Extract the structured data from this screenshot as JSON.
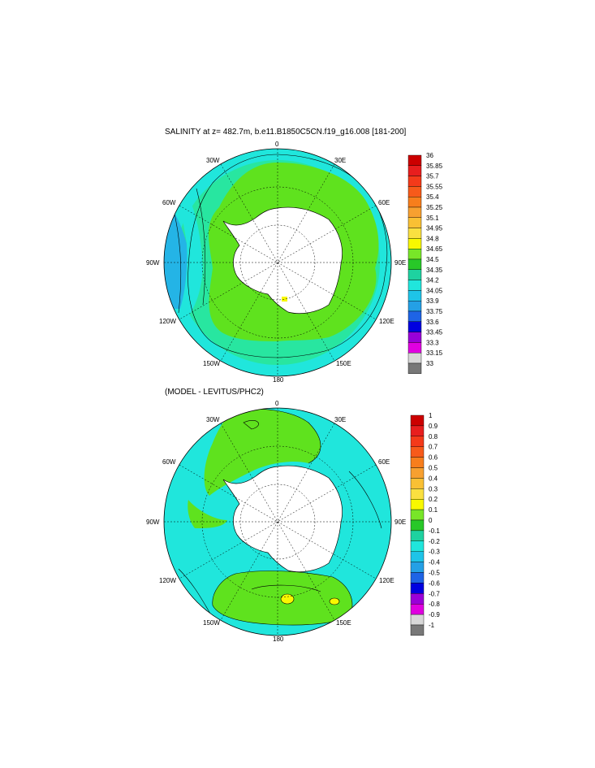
{
  "panels": [
    {
      "title": "SALINITY at z= 482.7m, b.e11.B1850C5CN.f19_g16.008 [181-200]",
      "lon_labels": [
        "0",
        "30E",
        "60E",
        "90E",
        "120E",
        "150E",
        "180",
        "150W",
        "120W",
        "90W",
        "60W",
        "30W"
      ],
      "colorbar": {
        "labels": [
          "36",
          "35.85",
          "35.7",
          "35.55",
          "35.4",
          "35.25",
          "35.1",
          "34.95",
          "34.8",
          "34.65",
          "34.5",
          "34.35",
          "34.2",
          "34.05",
          "33.9",
          "33.75",
          "33.6",
          "33.45",
          "33.3",
          "33.15",
          "33"
        ],
        "colors": [
          "#cc0000",
          "#e81e1e",
          "#f43a1a",
          "#f75a1a",
          "#f77e1c",
          "#f7a030",
          "#f9c034",
          "#fae040",
          "#f8f800",
          "#78e628",
          "#28c828",
          "#1ed2a0",
          "#20e6dc",
          "#1ec4e8",
          "#24a0e6",
          "#1e64e6",
          "#0000e0",
          "#9a00d8",
          "#e000e0",
          "#d8d8d8",
          "#787878"
        ]
      }
    },
    {
      "title": "(MODEL - LEVITUS/PHC2)",
      "lon_labels": [
        "0",
        "30E",
        "60E",
        "90E",
        "120E",
        "150E",
        "180",
        "150W",
        "120W",
        "90W",
        "60W",
        "30W"
      ],
      "colorbar": {
        "labels": [
          "1",
          "0.9",
          "0.8",
          "0.7",
          "0.6",
          "0.5",
          "0.4",
          "0.3",
          "0.2",
          "0.1",
          "0",
          "-0.1",
          "-0.2",
          "-0.3",
          "-0.4",
          "-0.5",
          "-0.6",
          "-0.7",
          "-0.8",
          "-0.9",
          "-1"
        ],
        "colors": [
          "#cc0000",
          "#e81e1e",
          "#f43a1a",
          "#f75a1a",
          "#f77e1c",
          "#f7a030",
          "#f9c034",
          "#fae040",
          "#f8f800",
          "#78e628",
          "#28c828",
          "#1ed2a0",
          "#20e6dc",
          "#1ec4e8",
          "#24a0e6",
          "#1e64e6",
          "#0000e0",
          "#9a00d8",
          "#e000e0",
          "#d8d8d8",
          "#787878"
        ]
      }
    }
  ],
  "colors": {
    "land": "#ffffff",
    "top_main": "#5fe21e",
    "top_outer": "#28e6a0",
    "top_rim": "#20e6dc",
    "bot_main": "#20e6dc",
    "bot_green": "#5fe21e",
    "contour": "#000000"
  }
}
